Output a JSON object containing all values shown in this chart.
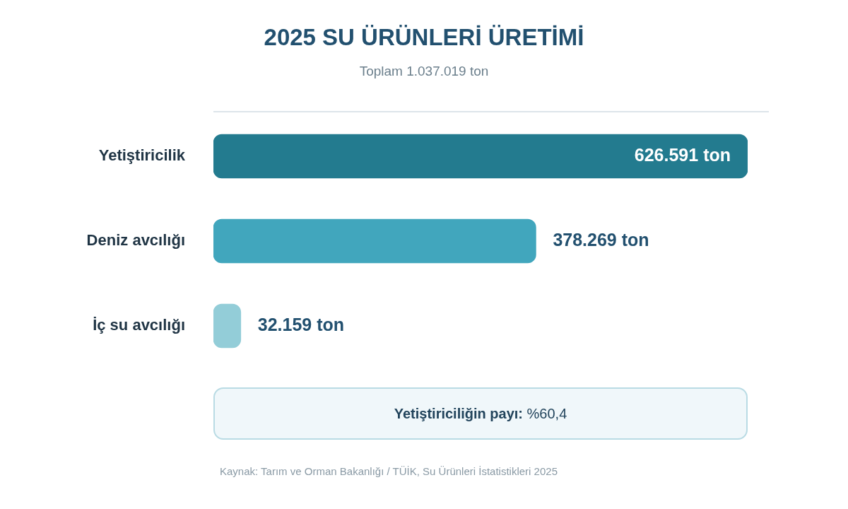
{
  "chart_data": {
    "type": "bar",
    "orientation": "horizontal",
    "title": "2025 SU ÜRÜNLERİ ÜRETİMİ",
    "subtitle": "Toplam 1.037.019 ton",
    "categories": [
      "Yetiştiricilik",
      "Deniz avcılığı",
      "İç su avcılığı"
    ],
    "values": [
      626591,
      378269,
      32159
    ],
    "colors": [
      "#237b8f",
      "#41a6bd",
      "#93cdd8"
    ],
    "value_labels": [
      "626.591 ton",
      "378.269 ton",
      "32.159 ton"
    ],
    "legend": false,
    "annotations": [
      "Yetiştiriciliğin payı: %60,4",
      "Kaynak: Tarım ve Orman Bakanlığı / TÜİK, Su Ürünleri İstatistikleri 2025"
    ]
  }
}
